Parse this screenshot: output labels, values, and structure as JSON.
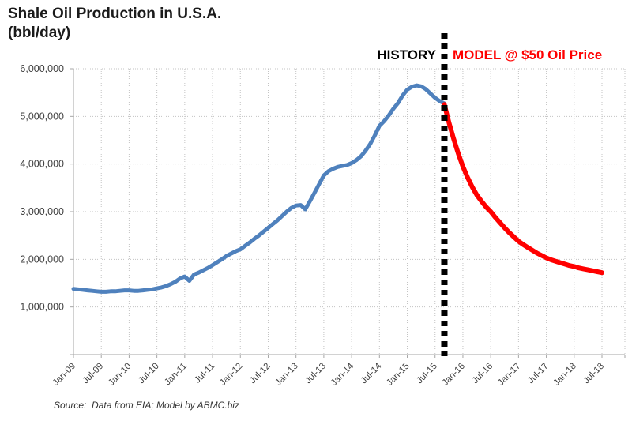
{
  "title": {
    "line1": "Shale Oil Production in U.S.A.",
    "line2": "(bbl/day)"
  },
  "annotations": {
    "history": "HISTORY",
    "model": "MODEL @ $50 Oil Price"
  },
  "source_note": "Source:  Data from EIA; Model by ABMC.biz",
  "colors": {
    "history_line": "#4F81BD",
    "model_line": "#FF0000",
    "divider": "#000000",
    "gridline": "#C3C3C3",
    "axis_line": "#A6A6A6",
    "tick_text": "#404040"
  },
  "chart_data": {
    "type": "line",
    "title": "Shale Oil Production in U.S.A. (bbl/day)",
    "unit": "bbl/day",
    "grid": true,
    "x_axis": {
      "start_month": "2009-01",
      "end_month": "2018-07",
      "tick_interval_months": 6,
      "tick_labels": [
        "Jan-09",
        "Jul-09",
        "Jan-10",
        "Jul-10",
        "Jan-11",
        "Jul-11",
        "Jan-12",
        "Jul-12",
        "Jan-13",
        "Jul-13",
        "Jan-14",
        "Jul-14",
        "Jan-15",
        "Jul-15",
        "Jan-16",
        "Jul-16",
        "Jan-17",
        "Jul-17",
        "Jan-18",
        "Jul-18"
      ]
    },
    "y_axis": {
      "min": 0,
      "max": 6000000,
      "tick_step": 1000000,
      "tick_labels": [
        "-",
        "1,000,000",
        "2,000,000",
        "3,000,000",
        "4,000,000",
        "5,000,000",
        "6,000,000"
      ]
    },
    "divider": {
      "month": "2015-09",
      "style": "dashed",
      "color": "#000000"
    },
    "series": [
      {
        "id": "history",
        "name": "HISTORY",
        "color": "#4F81BD",
        "start_month": "2009-01",
        "monthly_values": [
          1380000,
          1370000,
          1360000,
          1350000,
          1340000,
          1330000,
          1320000,
          1320000,
          1330000,
          1330000,
          1340000,
          1350000,
          1350000,
          1340000,
          1340000,
          1350000,
          1360000,
          1370000,
          1390000,
          1410000,
          1440000,
          1480000,
          1530000,
          1600000,
          1640000,
          1550000,
          1680000,
          1720000,
          1770000,
          1820000,
          1880000,
          1940000,
          2000000,
          2070000,
          2120000,
          2170000,
          2210000,
          2280000,
          2350000,
          2430000,
          2500000,
          2580000,
          2660000,
          2740000,
          2820000,
          2910000,
          3000000,
          3080000,
          3130000,
          3140000,
          3050000,
          3220000,
          3400000,
          3580000,
          3760000,
          3850000,
          3900000,
          3940000,
          3960000,
          3980000,
          4020000,
          4080000,
          4160000,
          4280000,
          4420000,
          4600000,
          4800000,
          4900000,
          5020000,
          5160000,
          5280000,
          5440000,
          5560000,
          5620000,
          5650000,
          5630000,
          5570000,
          5480000,
          5390000,
          5320000,
          5270000
        ]
      },
      {
        "id": "model",
        "name": "MODEL @ $50 Oil Price",
        "color": "#FF0000",
        "start_month": "2015-09",
        "monthly_values": [
          5250000,
          4870000,
          4530000,
          4220000,
          3950000,
          3720000,
          3520000,
          3350000,
          3220000,
          3100000,
          3000000,
          2880000,
          2770000,
          2660000,
          2560000,
          2470000,
          2380000,
          2310000,
          2250000,
          2190000,
          2130000,
          2080000,
          2030000,
          1990000,
          1960000,
          1930000,
          1900000,
          1870000,
          1850000,
          1820000,
          1800000,
          1780000,
          1760000,
          1740000,
          1720000
        ]
      }
    ]
  }
}
